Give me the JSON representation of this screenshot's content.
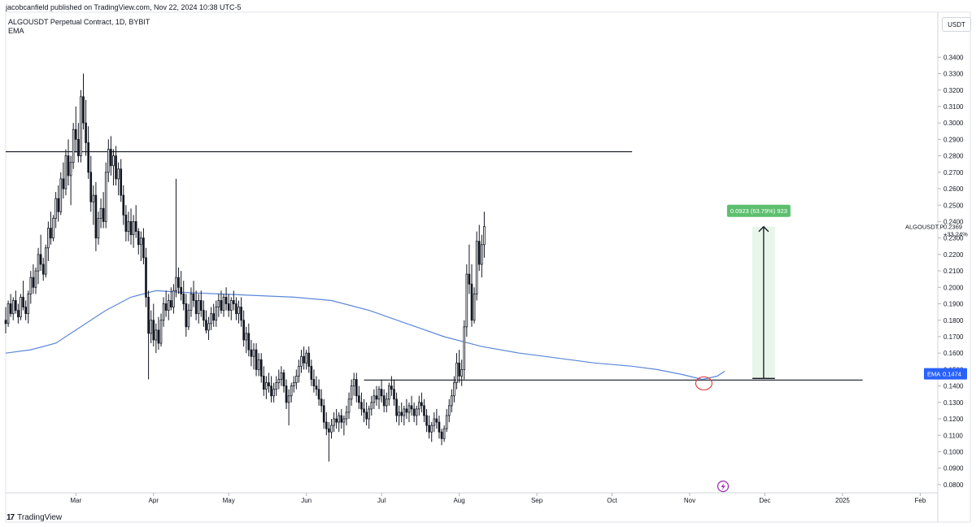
{
  "header": {
    "publisher_line": "jacobcanfield published on TradingView.com, Nov 22, 2024 10:38 UTC-5"
  },
  "legend": {
    "symbol_line": "ALGOUSDT Perpetual Contract, 1D, BYBIT",
    "indicator": "EMA"
  },
  "axis": {
    "unit": "USDT"
  },
  "brand": {
    "name": "TradingView",
    "mark": "17"
  },
  "colors": {
    "up": "#ffffff",
    "down": "#131722",
    "ema": "#5b87d9",
    "measure_fill": "#e8f5e9",
    "measure_label_bg": "#5cbf6e",
    "ema_label_bg": "#2962ff",
    "annotation": "#e0302f"
  },
  "chart_data": {
    "type": "candlestick",
    "title": "ALGOUSDT Perpetual Contract, 1D, BYBIT",
    "ylim": [
      0.075,
      0.355
    ],
    "y_ticks": [
      0.34,
      0.33,
      0.32,
      0.31,
      0.3,
      0.29,
      0.28,
      0.27,
      0.26,
      0.25,
      0.24,
      0.23,
      0.22,
      0.21,
      0.2,
      0.19,
      0.18,
      0.17,
      0.16,
      0.15,
      0.14,
      0.13,
      0.12,
      0.11,
      0.1,
      0.09,
      0.08
    ],
    "y_tick_labels": [
      "0.3400",
      "0.3300",
      "0.3200",
      "0.3100",
      "0.3000",
      "0.2900",
      "0.2800",
      "0.2700",
      "0.2600",
      "0.2500",
      "0.2400",
      "0.2300",
      "0.2200",
      "0.2100",
      "0.2000",
      "0.1900",
      "0.1800",
      "0.1700",
      "0.1600",
      "0.1500",
      "0.1400",
      "0.1300",
      "0.1200",
      "0.1100",
      "0.1000",
      "0.0900",
      "0.0800"
    ],
    "x_labels": [
      "Mar",
      "Apr",
      "May",
      "Jun",
      "Jul",
      "Aug",
      "Sep",
      "Oct",
      "Nov",
      "Dec",
      "2025",
      "Feb"
    ],
    "x_label_days": [
      28,
      59,
      89,
      120,
      150,
      181,
      212,
      242,
      273,
      303,
      334,
      365
    ],
    "x_range_days": [
      0,
      372
    ],
    "candles": [
      [
        0.18,
        0.188,
        0.172,
        0.178
      ],
      [
        0.178,
        0.192,
        0.176,
        0.19
      ],
      [
        0.19,
        0.196,
        0.182,
        0.184
      ],
      [
        0.184,
        0.194,
        0.18,
        0.192
      ],
      [
        0.192,
        0.198,
        0.184,
        0.186
      ],
      [
        0.186,
        0.19,
        0.178,
        0.182
      ],
      [
        0.182,
        0.196,
        0.18,
        0.194
      ],
      [
        0.194,
        0.204,
        0.186,
        0.188
      ],
      [
        0.188,
        0.192,
        0.18,
        0.184
      ],
      [
        0.184,
        0.198,
        0.178,
        0.196
      ],
      [
        0.196,
        0.21,
        0.19,
        0.206
      ],
      [
        0.206,
        0.214,
        0.196,
        0.2
      ],
      [
        0.2,
        0.212,
        0.196,
        0.21
      ],
      [
        0.21,
        0.224,
        0.202,
        0.22
      ],
      [
        0.22,
        0.232,
        0.21,
        0.214
      ],
      [
        0.214,
        0.218,
        0.204,
        0.208
      ],
      [
        0.208,
        0.226,
        0.206,
        0.224
      ],
      [
        0.224,
        0.24,
        0.216,
        0.236
      ],
      [
        0.236,
        0.246,
        0.226,
        0.23
      ],
      [
        0.23,
        0.244,
        0.228,
        0.242
      ],
      [
        0.242,
        0.258,
        0.236,
        0.254
      ],
      [
        0.254,
        0.262,
        0.24,
        0.246
      ],
      [
        0.246,
        0.27,
        0.244,
        0.266
      ],
      [
        0.266,
        0.276,
        0.254,
        0.26
      ],
      [
        0.26,
        0.284,
        0.256,
        0.28
      ],
      [
        0.28,
        0.29,
        0.262,
        0.268
      ],
      [
        0.268,
        0.28,
        0.25,
        0.276
      ],
      [
        0.276,
        0.3,
        0.272,
        0.296
      ],
      [
        0.296,
        0.31,
        0.282,
        0.29
      ],
      [
        0.29,
        0.3,
        0.276,
        0.28
      ],
      [
        0.28,
        0.32,
        0.276,
        0.316
      ],
      [
        0.316,
        0.33,
        0.296,
        0.3
      ],
      [
        0.3,
        0.314,
        0.28,
        0.288
      ],
      [
        0.288,
        0.298,
        0.266,
        0.27
      ],
      [
        0.27,
        0.28,
        0.246,
        0.252
      ],
      [
        0.252,
        0.262,
        0.238,
        0.256
      ],
      [
        0.256,
        0.264,
        0.222,
        0.23
      ],
      [
        0.23,
        0.246,
        0.226,
        0.242
      ],
      [
        0.242,
        0.254,
        0.236,
        0.248
      ],
      [
        0.248,
        0.258,
        0.236,
        0.24
      ],
      [
        0.24,
        0.276,
        0.236,
        0.27
      ],
      [
        0.27,
        0.29,
        0.264,
        0.284
      ],
      [
        0.284,
        0.292,
        0.268,
        0.274
      ],
      [
        0.274,
        0.284,
        0.262,
        0.28
      ],
      [
        0.28,
        0.286,
        0.262,
        0.266
      ],
      [
        0.266,
        0.276,
        0.256,
        0.272
      ],
      [
        0.272,
        0.278,
        0.252,
        0.256
      ],
      [
        0.256,
        0.262,
        0.238,
        0.244
      ],
      [
        0.244,
        0.25,
        0.228,
        0.234
      ],
      [
        0.234,
        0.246,
        0.228,
        0.24
      ],
      [
        0.24,
        0.248,
        0.226,
        0.232
      ],
      [
        0.232,
        0.244,
        0.224,
        0.24
      ],
      [
        0.24,
        0.25,
        0.23,
        0.234
      ],
      [
        0.234,
        0.236,
        0.22,
        0.226
      ],
      [
        0.226,
        0.234,
        0.216,
        0.23
      ],
      [
        0.23,
        0.236,
        0.214,
        0.218
      ],
      [
        0.218,
        0.224,
        0.188,
        0.194
      ],
      [
        0.194,
        0.198,
        0.144,
        0.172
      ],
      [
        0.172,
        0.186,
        0.166,
        0.18
      ],
      [
        0.18,
        0.19,
        0.164,
        0.168
      ],
      [
        0.168,
        0.178,
        0.16,
        0.174
      ],
      [
        0.174,
        0.182,
        0.162,
        0.166
      ],
      [
        0.166,
        0.184,
        0.164,
        0.18
      ],
      [
        0.18,
        0.194,
        0.176,
        0.19
      ],
      [
        0.19,
        0.198,
        0.182,
        0.186
      ],
      [
        0.186,
        0.196,
        0.18,
        0.192
      ],
      [
        0.192,
        0.2,
        0.186,
        0.188
      ],
      [
        0.188,
        0.202,
        0.184,
        0.198
      ],
      [
        0.198,
        0.266,
        0.194,
        0.206
      ],
      [
        0.206,
        0.212,
        0.196,
        0.2
      ],
      [
        0.2,
        0.21,
        0.192,
        0.196
      ],
      [
        0.196,
        0.204,
        0.186,
        0.19
      ],
      [
        0.19,
        0.196,
        0.17,
        0.176
      ],
      [
        0.176,
        0.19,
        0.174,
        0.186
      ],
      [
        0.186,
        0.2,
        0.182,
        0.196
      ],
      [
        0.196,
        0.204,
        0.188,
        0.192
      ],
      [
        0.192,
        0.198,
        0.18,
        0.184
      ],
      [
        0.184,
        0.196,
        0.178,
        0.192
      ],
      [
        0.192,
        0.198,
        0.182,
        0.186
      ],
      [
        0.186,
        0.192,
        0.176,
        0.18
      ],
      [
        0.18,
        0.186,
        0.172,
        0.174
      ],
      [
        0.174,
        0.182,
        0.168,
        0.178
      ],
      [
        0.178,
        0.188,
        0.174,
        0.184
      ],
      [
        0.184,
        0.19,
        0.176,
        0.18
      ],
      [
        0.18,
        0.192,
        0.176,
        0.188
      ],
      [
        0.188,
        0.196,
        0.182,
        0.192
      ],
      [
        0.192,
        0.198,
        0.184,
        0.186
      ],
      [
        0.186,
        0.196,
        0.182,
        0.194
      ],
      [
        0.194,
        0.2,
        0.186,
        0.19
      ],
      [
        0.19,
        0.196,
        0.182,
        0.186
      ],
      [
        0.186,
        0.194,
        0.18,
        0.192
      ],
      [
        0.192,
        0.198,
        0.186,
        0.19
      ],
      [
        0.19,
        0.194,
        0.18,
        0.184
      ],
      [
        0.184,
        0.192,
        0.178,
        0.188
      ],
      [
        0.188,
        0.194,
        0.176,
        0.18
      ],
      [
        0.18,
        0.186,
        0.164,
        0.168
      ],
      [
        0.168,
        0.176,
        0.16,
        0.172
      ],
      [
        0.172,
        0.178,
        0.158,
        0.162
      ],
      [
        0.162,
        0.168,
        0.152,
        0.158
      ],
      [
        0.158,
        0.166,
        0.15,
        0.162
      ],
      [
        0.162,
        0.166,
        0.146,
        0.15
      ],
      [
        0.15,
        0.16,
        0.146,
        0.156
      ],
      [
        0.156,
        0.16,
        0.142,
        0.146
      ],
      [
        0.146,
        0.152,
        0.134,
        0.138
      ],
      [
        0.138,
        0.146,
        0.132,
        0.142
      ],
      [
        0.142,
        0.148,
        0.136,
        0.14
      ],
      [
        0.14,
        0.146,
        0.13,
        0.134
      ],
      [
        0.134,
        0.142,
        0.13,
        0.138
      ],
      [
        0.138,
        0.146,
        0.134,
        0.142
      ],
      [
        0.142,
        0.15,
        0.138,
        0.144
      ],
      [
        0.144,
        0.152,
        0.14,
        0.148
      ],
      [
        0.148,
        0.15,
        0.136,
        0.14
      ],
      [
        0.14,
        0.144,
        0.126,
        0.13
      ],
      [
        0.13,
        0.138,
        0.116,
        0.134
      ],
      [
        0.134,
        0.142,
        0.13,
        0.14
      ],
      [
        0.14,
        0.146,
        0.136,
        0.142
      ],
      [
        0.142,
        0.15,
        0.138,
        0.146
      ],
      [
        0.146,
        0.156,
        0.142,
        0.152
      ],
      [
        0.152,
        0.162,
        0.148,
        0.158
      ],
      [
        0.158,
        0.164,
        0.15,
        0.154
      ],
      [
        0.154,
        0.162,
        0.15,
        0.16
      ],
      [
        0.16,
        0.164,
        0.148,
        0.152
      ],
      [
        0.152,
        0.156,
        0.14,
        0.144
      ],
      [
        0.144,
        0.15,
        0.136,
        0.14
      ],
      [
        0.14,
        0.146,
        0.134,
        0.138
      ],
      [
        0.138,
        0.144,
        0.128,
        0.132
      ],
      [
        0.132,
        0.138,
        0.124,
        0.128
      ],
      [
        0.128,
        0.132,
        0.114,
        0.118
      ],
      [
        0.118,
        0.124,
        0.11,
        0.114
      ],
      [
        0.114,
        0.118,
        0.094,
        0.112
      ],
      [
        0.112,
        0.12,
        0.108,
        0.116
      ],
      [
        0.116,
        0.124,
        0.112,
        0.12
      ],
      [
        0.12,
        0.126,
        0.114,
        0.118
      ],
      [
        0.118,
        0.124,
        0.112,
        0.122
      ],
      [
        0.122,
        0.126,
        0.114,
        0.118
      ],
      [
        0.118,
        0.122,
        0.11,
        0.12
      ],
      [
        0.12,
        0.128,
        0.116,
        0.124
      ],
      [
        0.124,
        0.136,
        0.12,
        0.132
      ],
      [
        0.132,
        0.144,
        0.128,
        0.14
      ],
      [
        0.14,
        0.148,
        0.134,
        0.144
      ],
      [
        0.144,
        0.148,
        0.13,
        0.134
      ],
      [
        0.134,
        0.14,
        0.126,
        0.13
      ],
      [
        0.13,
        0.136,
        0.122,
        0.126
      ],
      [
        0.126,
        0.132,
        0.118,
        0.124
      ],
      [
        0.124,
        0.13,
        0.116,
        0.12
      ],
      [
        0.12,
        0.128,
        0.114,
        0.126
      ],
      [
        0.126,
        0.134,
        0.122,
        0.13
      ],
      [
        0.13,
        0.138,
        0.126,
        0.134
      ],
      [
        0.134,
        0.14,
        0.128,
        0.132
      ],
      [
        0.132,
        0.14,
        0.126,
        0.138
      ],
      [
        0.138,
        0.144,
        0.13,
        0.134
      ],
      [
        0.134,
        0.138,
        0.124,
        0.128
      ],
      [
        0.128,
        0.136,
        0.124,
        0.132
      ],
      [
        0.132,
        0.142,
        0.128,
        0.14
      ],
      [
        0.14,
        0.146,
        0.134,
        0.138
      ],
      [
        0.138,
        0.144,
        0.128,
        0.132
      ],
      [
        0.132,
        0.136,
        0.118,
        0.122
      ],
      [
        0.122,
        0.128,
        0.116,
        0.124
      ],
      [
        0.124,
        0.13,
        0.118,
        0.122
      ],
      [
        0.122,
        0.128,
        0.116,
        0.126
      ],
      [
        0.126,
        0.132,
        0.12,
        0.124
      ],
      [
        0.124,
        0.13,
        0.118,
        0.128
      ],
      [
        0.128,
        0.134,
        0.122,
        0.126
      ],
      [
        0.126,
        0.13,
        0.118,
        0.122
      ],
      [
        0.122,
        0.128,
        0.116,
        0.126
      ],
      [
        0.126,
        0.134,
        0.122,
        0.13
      ],
      [
        0.13,
        0.136,
        0.124,
        0.128
      ],
      [
        0.128,
        0.132,
        0.118,
        0.122
      ],
      [
        0.122,
        0.126,
        0.112,
        0.116
      ],
      [
        0.116,
        0.122,
        0.108,
        0.112
      ],
      [
        0.112,
        0.118,
        0.106,
        0.116
      ],
      [
        0.116,
        0.124,
        0.112,
        0.12
      ],
      [
        0.12,
        0.126,
        0.114,
        0.118
      ],
      [
        0.118,
        0.122,
        0.108,
        0.112
      ],
      [
        0.112,
        0.114,
        0.104,
        0.108
      ],
      [
        0.108,
        0.116,
        0.106,
        0.114
      ],
      [
        0.114,
        0.126,
        0.112,
        0.122
      ],
      [
        0.122,
        0.132,
        0.118,
        0.128
      ],
      [
        0.128,
        0.138,
        0.124,
        0.134
      ],
      [
        0.134,
        0.146,
        0.13,
        0.142
      ],
      [
        0.142,
        0.16,
        0.138,
        0.154
      ],
      [
        0.154,
        0.162,
        0.142,
        0.146
      ],
      [
        0.146,
        0.156,
        0.14,
        0.15
      ],
      [
        0.15,
        0.18,
        0.144,
        0.176
      ],
      [
        0.176,
        0.214,
        0.17,
        0.208
      ],
      [
        0.208,
        0.226,
        0.196,
        0.202
      ],
      [
        0.202,
        0.214,
        0.176,
        0.18
      ],
      [
        0.18,
        0.2,
        0.178,
        0.196
      ],
      [
        0.196,
        0.234,
        0.192,
        0.228
      ],
      [
        0.228,
        0.238,
        0.21,
        0.214
      ],
      [
        0.214,
        0.232,
        0.206,
        0.226
      ],
      [
        0.226,
        0.246,
        0.218,
        0.237
      ]
    ],
    "candle_start_day": 0,
    "ema": [
      [
        0,
        0.16
      ],
      [
        10,
        0.162
      ],
      [
        20,
        0.166
      ],
      [
        30,
        0.176
      ],
      [
        40,
        0.186
      ],
      [
        50,
        0.194
      ],
      [
        60,
        0.198
      ],
      [
        70,
        0.197
      ],
      [
        85,
        0.196
      ],
      [
        100,
        0.195
      ],
      [
        115,
        0.194
      ],
      [
        130,
        0.192
      ],
      [
        145,
        0.186
      ],
      [
        160,
        0.178
      ],
      [
        175,
        0.17
      ],
      [
        190,
        0.164
      ],
      [
        205,
        0.16
      ],
      [
        220,
        0.157
      ],
      [
        235,
        0.154
      ],
      [
        250,
        0.152
      ],
      [
        260,
        0.15
      ],
      [
        270,
        0.147
      ],
      [
        278,
        0.144
      ],
      [
        284,
        0.146
      ],
      [
        287,
        0.149
      ]
    ],
    "horizontal_levels": [
      {
        "price": 0.2825,
        "from_day": 0,
        "to_day": 250
      },
      {
        "price": 0.1436,
        "from_day": 143,
        "to_day": 342
      }
    ],
    "measure": {
      "from_price": 0.1446,
      "to_price": 0.2369,
      "day_from": 298,
      "day_to": 307,
      "label": "0.0923 (63.79%) 923"
    },
    "annotation_circle": {
      "day": 278,
      "price": 0.1416
    },
    "last_price_label": {
      "symbol": "ALGOUSDT.P",
      "price": "0.2369",
      "change": "+33.24%",
      "value": 0.2369
    },
    "ema_label": {
      "name": "EMA",
      "value": "0.1474",
      "price": 0.1474
    }
  }
}
